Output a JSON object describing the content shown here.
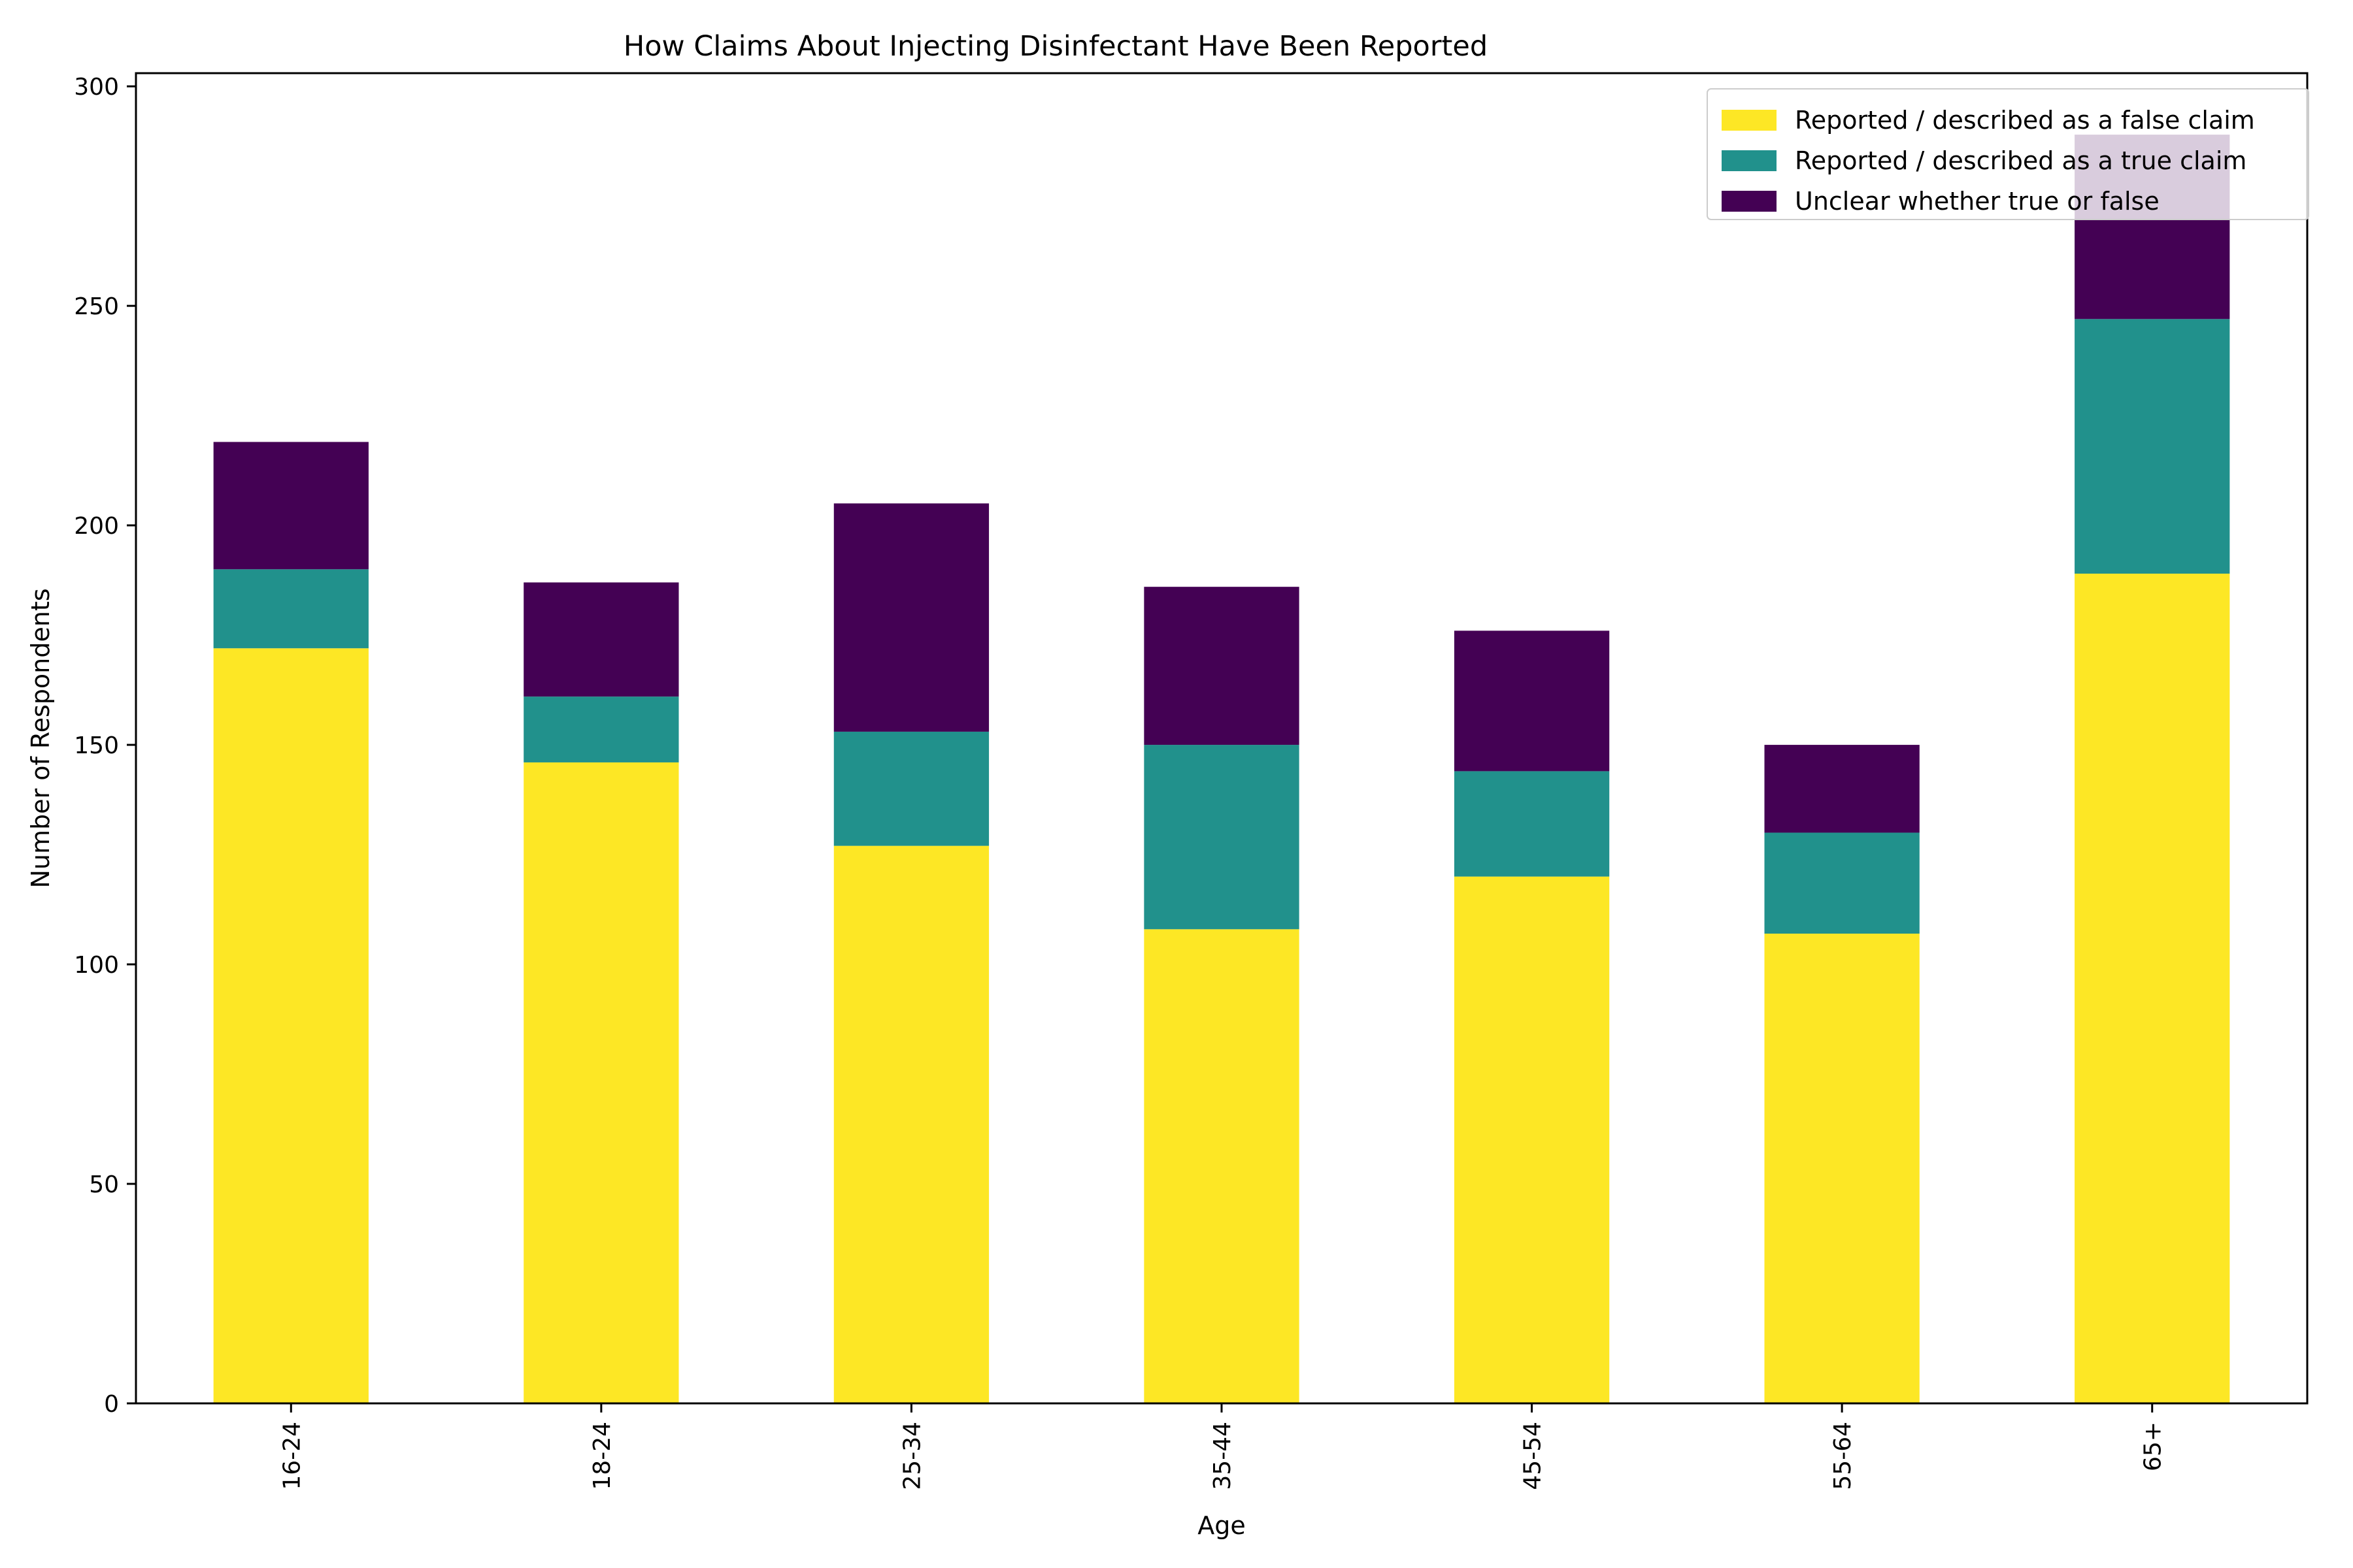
{
  "chart_data": {
    "type": "bar",
    "stacked": true,
    "title": "How Claims About Injecting Disinfectant Have Been Reported",
    "xlabel": "Age",
    "ylabel": "Number of Respondents",
    "ylim": [
      0,
      303
    ],
    "yticks": [
      0,
      50,
      100,
      150,
      200,
      250,
      300
    ],
    "categories": [
      "16-24",
      "18-24",
      "25-34",
      "35-44",
      "45-54",
      "55-64",
      "65+"
    ],
    "series": [
      {
        "name": "Reported / described as a false claim",
        "color": "#fde725",
        "values": [
          172,
          146,
          127,
          108,
          120,
          107,
          189
        ]
      },
      {
        "name": "Reported / described as a true claim",
        "color": "#21918c",
        "values": [
          18,
          15,
          26,
          42,
          24,
          23,
          58
        ]
      },
      {
        "name": "Unclear whether true or false",
        "color": "#440154",
        "values": [
          29,
          26,
          52,
          36,
          32,
          20,
          42
        ]
      }
    ],
    "legend_position": "top-right",
    "grid": false
  }
}
